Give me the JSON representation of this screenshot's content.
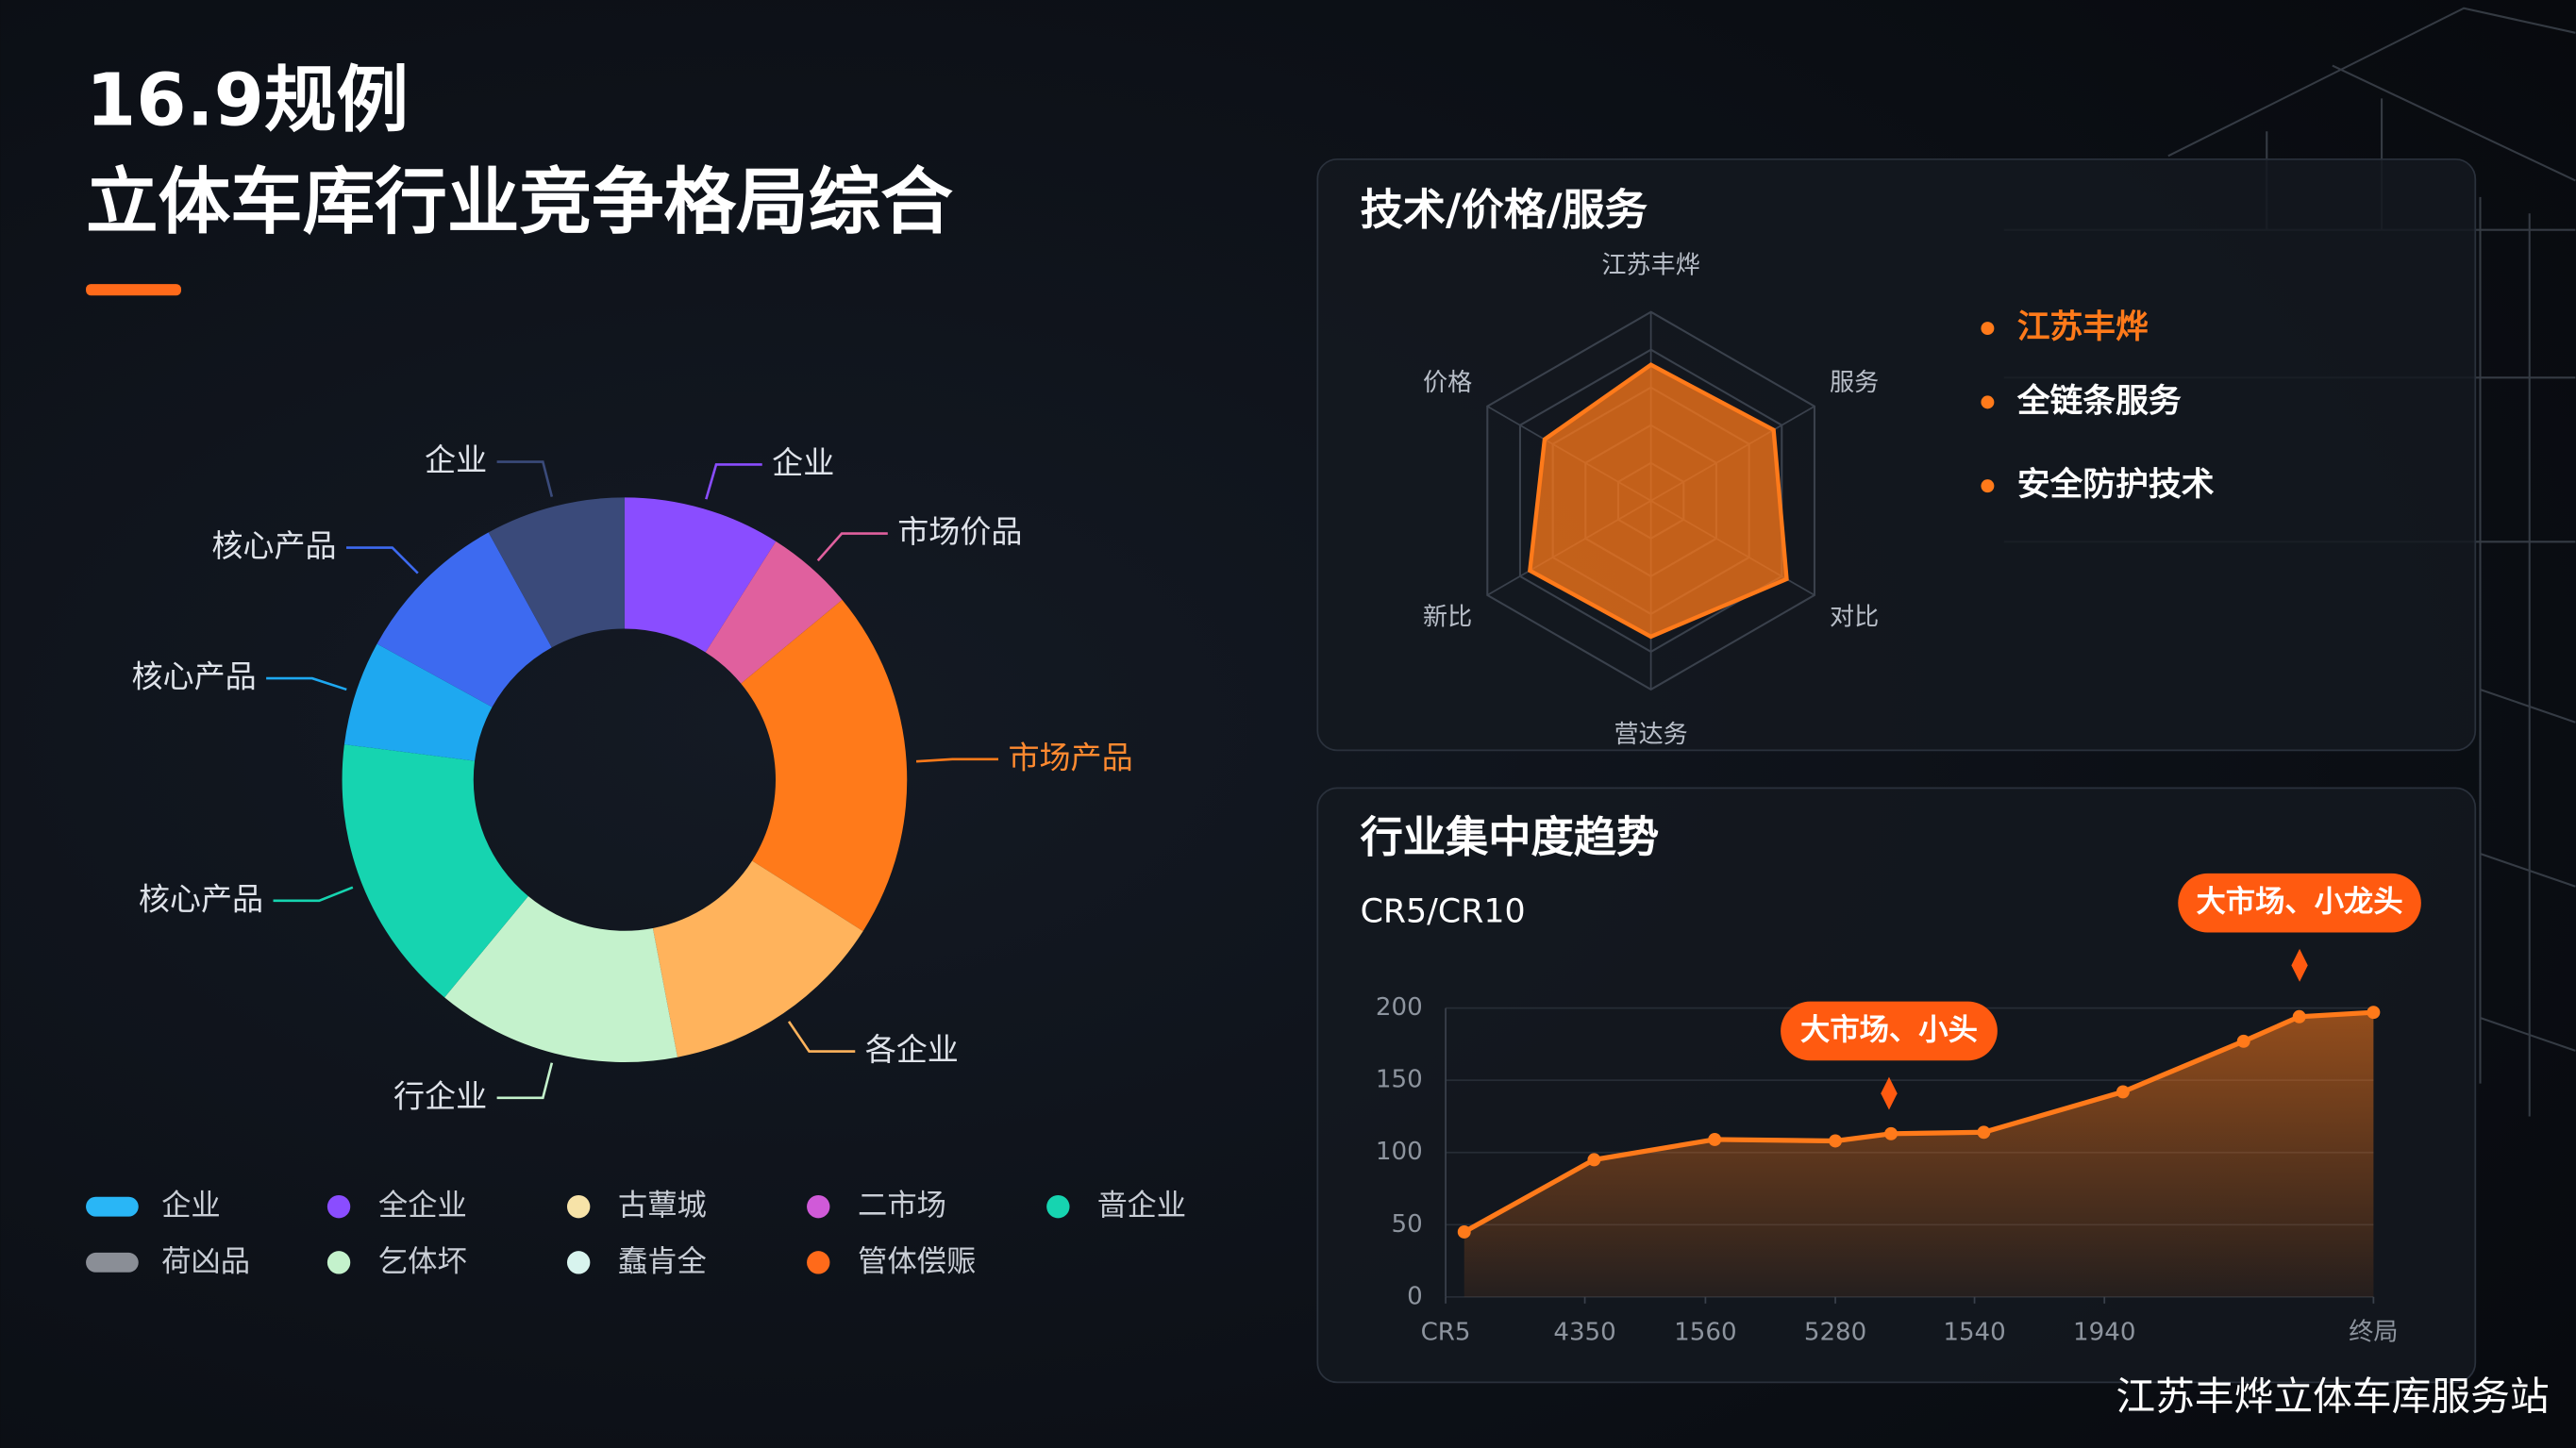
{
  "header": {
    "title_line1": "16.9规例",
    "title_line2": "立体车库行业竞争格局综合"
  },
  "chart_data": [
    {
      "type": "donut",
      "categories": [
        "企业",
        "市场价品",
        "市场产品",
        "各企业",
        "行企业",
        "核心产品",
        "核心产品",
        "核心产品",
        "企业"
      ],
      "values": [
        9,
        5,
        20,
        13,
        14,
        16,
        6,
        9,
        8
      ],
      "colors": [
        "#8a4dff",
        "#e0609e",
        "#ff7a1a",
        "#ffb35c",
        "#c4f2cc",
        "#16d4b0",
        "#1ea8f0",
        "#3d6af0",
        "#3a4a7a"
      ],
      "legend_items": [
        {
          "label": "企业",
          "color": "#29b6f6"
        },
        {
          "label": "全企业",
          "color": "#8a4dff"
        },
        {
          "label": "古蕈城",
          "color": "#f7e3a8"
        },
        {
          "label": "二市场",
          "color": "#d05ad8"
        },
        {
          "label": "啬企业",
          "color": "#16d4b0"
        },
        {
          "label": "荷凶品",
          "color": "#8a8e96"
        },
        {
          "label": "乞体坏",
          "color": "#c4f2cc"
        },
        {
          "label": "蠢肯全",
          "color": "#d8f4ee"
        },
        {
          "label": "管体偿赈",
          "color": "#ff6a1a"
        }
      ]
    },
    {
      "type": "radar",
      "title": "技术/价格/服务",
      "categories": [
        "江苏丰烨",
        "服务",
        "对比",
        "营达务",
        "新比",
        "价格"
      ],
      "values": [
        72,
        75,
        83,
        72,
        74,
        65
      ],
      "rlim": [
        0,
        100
      ],
      "rticks": [
        20,
        40,
        60,
        80,
        100
      ],
      "color": "#ff7a1a",
      "list": [
        "江苏丰烨",
        "全链条服务",
        "安全防护技术"
      ]
    },
    {
      "type": "area",
      "title": "行业集中度趋势",
      "subtitle": "CR5/CR10",
      "x": [
        2,
        16,
        29,
        42,
        48,
        58,
        73,
        86,
        92,
        100
      ],
      "values": [
        45,
        95,
        109,
        108,
        113,
        114,
        142,
        177,
        194,
        197
      ],
      "xlim": [
        0,
        100
      ],
      "ylim": [
        0,
        200
      ],
      "xticks": [
        {
          "value": 0,
          "label": "CR5"
        },
        {
          "value": 15,
          "label": "4350"
        },
        {
          "value": 28,
          "label": "1560"
        },
        {
          "value": 42,
          "label": "5280"
        },
        {
          "value": 57,
          "label": "1540"
        },
        {
          "value": 71,
          "label": "1940"
        },
        {
          "value": 100,
          "label": "终局"
        }
      ],
      "yticks": [
        0,
        50,
        100,
        150,
        200
      ],
      "color": "#ff7a1a",
      "grid": true,
      "annotations": [
        "大市场、小头",
        "大市场、小龙头"
      ]
    }
  ],
  "watermark": "江苏丰烨立体车库服务站"
}
